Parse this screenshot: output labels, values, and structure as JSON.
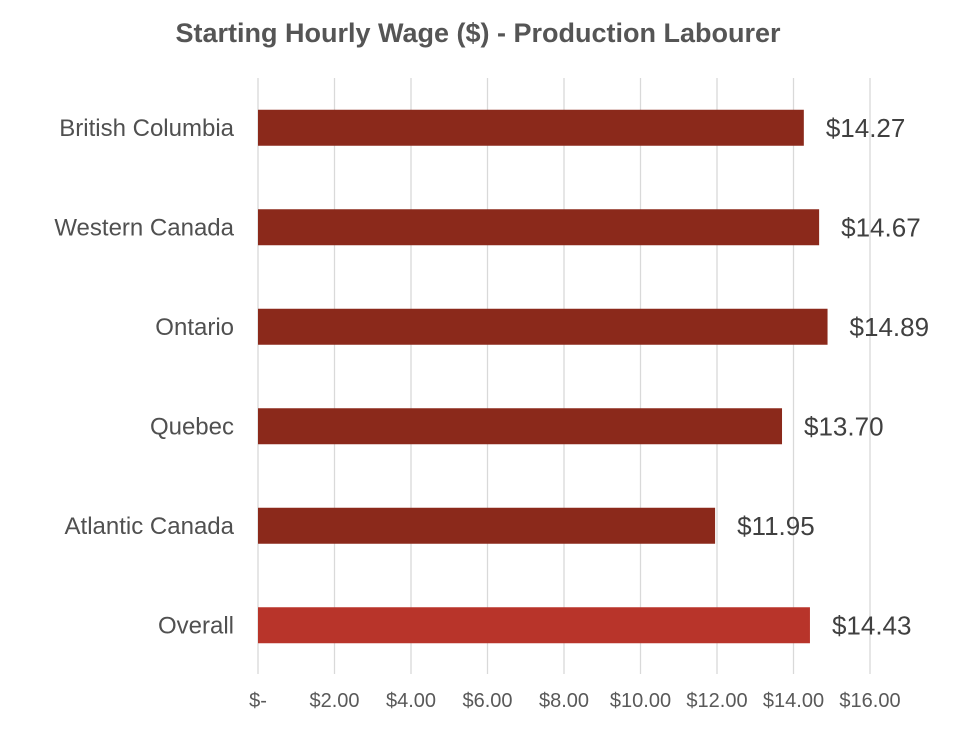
{
  "chart_data": {
    "type": "bar",
    "orientation": "horizontal",
    "title": "Starting Hourly Wage ($) -  Production Labourer",
    "categories": [
      "British Columbia",
      "Western Canada",
      "Ontario",
      "Quebec",
      "Atlantic Canada",
      "Overall"
    ],
    "values": [
      14.27,
      14.67,
      14.89,
      13.7,
      11.95,
      14.43
    ],
    "value_labels": [
      "$14.27",
      "$14.67",
      "$14.89",
      "$13.70",
      "$11.95",
      "$14.43"
    ],
    "xlim": [
      0,
      16
    ],
    "x_ticks": [
      0,
      2,
      4,
      6,
      8,
      10,
      12,
      14,
      16
    ],
    "x_tick_labels": [
      "$-",
      "$2.00",
      "$4.00",
      "$6.00",
      "$8.00",
      "$10.00",
      "$12.00",
      "$14.00",
      "$16.00"
    ],
    "grid": "vertical",
    "legend": "none",
    "colors": {
      "bar": "#8b291b",
      "highlight_bar": "#b8342a",
      "grid": "#d9d9d9"
    },
    "highlight_category": "Overall"
  }
}
